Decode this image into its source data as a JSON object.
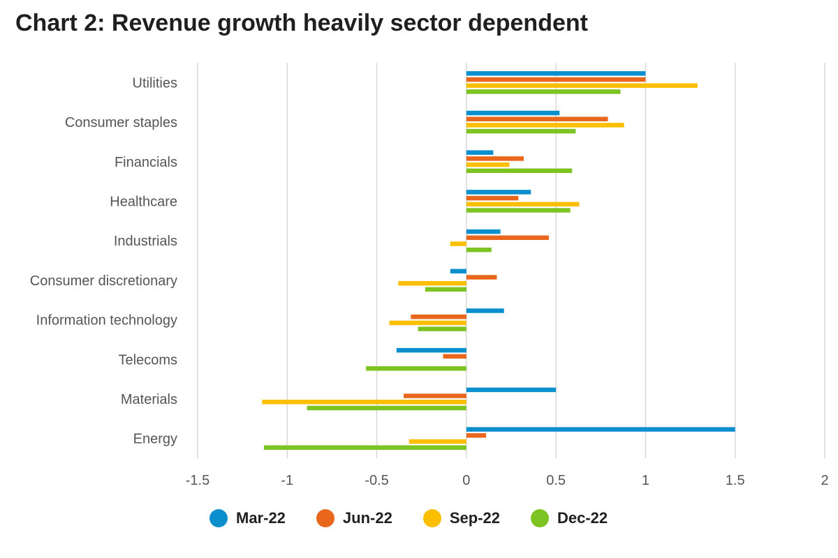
{
  "chart_data": {
    "type": "bar",
    "orientation": "horizontal",
    "title": "Chart 2: Revenue growth heavily sector dependent",
    "categories": [
      "Utilities",
      "Consumer staples",
      "Financials",
      "Healthcare",
      "Industrials",
      "Consumer discretionary",
      "Information technology",
      "Telecoms",
      "Materials",
      "Energy"
    ],
    "series": [
      {
        "name": "Mar-22",
        "color": "#0a8fce",
        "values": [
          1.0,
          0.52,
          0.15,
          0.36,
          0.19,
          -0.09,
          0.21,
          -0.39,
          0.5,
          1.5
        ]
      },
      {
        "name": "Jun-22",
        "color": "#e8671c",
        "values": [
          1.0,
          0.79,
          0.32,
          0.29,
          0.46,
          0.17,
          -0.31,
          -0.13,
          -0.35,
          0.11
        ]
      },
      {
        "name": "Sep-22",
        "color": "#fbbf00",
        "values": [
          1.29,
          0.88,
          0.24,
          0.63,
          -0.09,
          -0.38,
          -0.43,
          0.0,
          -1.14,
          -0.32
        ]
      },
      {
        "name": "Dec-22",
        "color": "#7dc422",
        "values": [
          0.86,
          0.61,
          0.59,
          0.58,
          0.14,
          -0.23,
          -0.27,
          -0.56,
          -0.89,
          -1.13
        ]
      }
    ],
    "xlim": [
      -1.5,
      2
    ],
    "x_ticks": [
      "-1.5",
      "-1",
      "-0.5",
      "0",
      "0.5",
      "1",
      "1.5",
      "2"
    ],
    "grid": true,
    "legend_position": "bottom"
  }
}
